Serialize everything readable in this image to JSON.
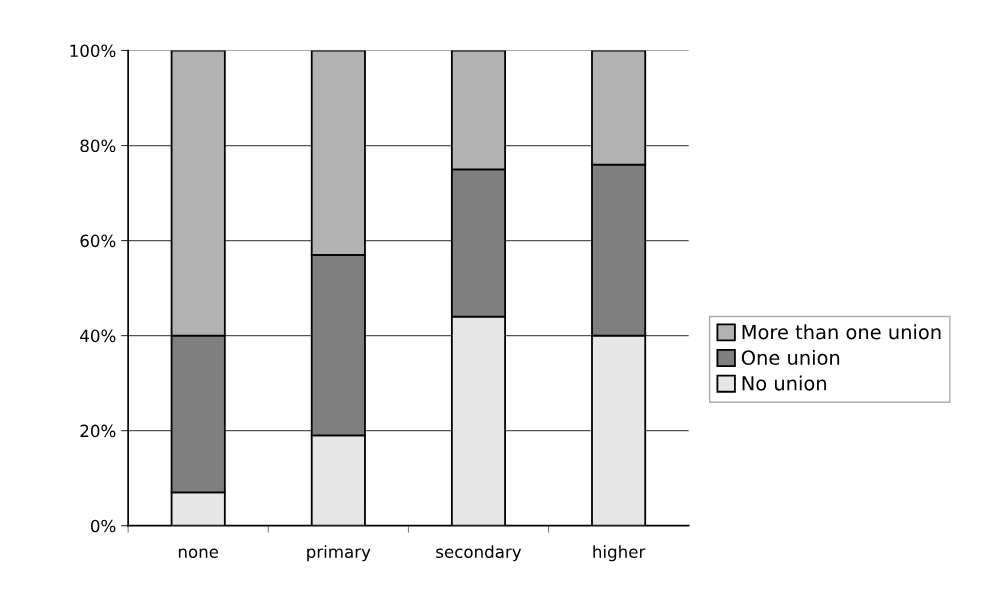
{
  "chart_data": {
    "type": "bar",
    "stacked": true,
    "categories": [
      "none",
      "primary",
      "secondary",
      "higher"
    ],
    "series": [
      {
        "name": "No union",
        "color": "#e6e6e6",
        "values": [
          7,
          19,
          44,
          40
        ]
      },
      {
        "name": "One union",
        "color": "#7f7f7f",
        "values": [
          33,
          38,
          31,
          36
        ]
      },
      {
        "name": "More than one union",
        "color": "#b2b2b2",
        "values": [
          60,
          43,
          25,
          24
        ]
      }
    ],
    "ylim": [
      0,
      100
    ],
    "yticks": [
      {
        "value": 0,
        "label": "0%"
      },
      {
        "value": 20,
        "label": "20%"
      },
      {
        "value": 40,
        "label": "40%"
      },
      {
        "value": 60,
        "label": "60%"
      },
      {
        "value": 80,
        "label": "80%"
      },
      {
        "value": 100,
        "label": "100%"
      }
    ],
    "grid": "y",
    "legend": "right"
  }
}
